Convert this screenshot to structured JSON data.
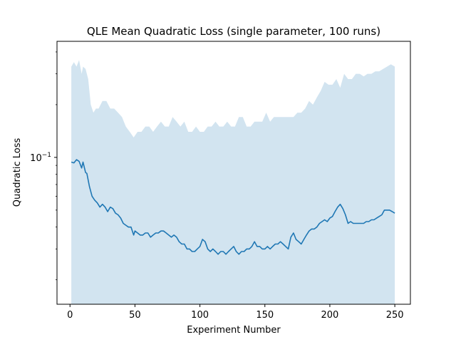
{
  "chart_data": {
    "type": "line",
    "title": "QLE Mean Quadratic Loss (single parameter, 100 runs)",
    "xlabel": "Experiment Number",
    "ylabel": "Quadratic Loss",
    "xlim": [
      -10,
      262
    ],
    "ylim": [
      0.0145,
      0.46
    ],
    "yscale": "log",
    "grid": false,
    "legend": "none",
    "x_ticks": [
      {
        "value": 0,
        "label": "0"
      },
      {
        "value": 50,
        "label": "50"
      },
      {
        "value": 100,
        "label": "100"
      },
      {
        "value": 150,
        "label": "150"
      },
      {
        "value": 200,
        "label": "200"
      },
      {
        "value": 250,
        "label": "250"
      }
    ],
    "y_ticks": [
      {
        "value": 0.1,
        "label": "10",
        "exponent": "−1"
      }
    ],
    "colors": {
      "line": "#1f77b4",
      "band": "#1f77b4"
    },
    "series": [
      {
        "role": "mean",
        "x": [
          1,
          3,
          5,
          7,
          9,
          10,
          12,
          13,
          15,
          17,
          19,
          21,
          23,
          25,
          27,
          29,
          31,
          33,
          35,
          37,
          39,
          41,
          43,
          45,
          47,
          49,
          50,
          52,
          54,
          56,
          58,
          60,
          62,
          64,
          66,
          68,
          70,
          72,
          74,
          76,
          78,
          80,
          82,
          84,
          86,
          88,
          90,
          92,
          94,
          96,
          98,
          100,
          102,
          104,
          106,
          108,
          110,
          112,
          114,
          116,
          118,
          120,
          122,
          124,
          126,
          128,
          130,
          132,
          134,
          136,
          138,
          140,
          142,
          144,
          146,
          148,
          150,
          152,
          154,
          156,
          158,
          160,
          162,
          164,
          166,
          168,
          170,
          172,
          174,
          176,
          178,
          180,
          182,
          184,
          186,
          188,
          190,
          192,
          194,
          196,
          198,
          200,
          202,
          204,
          206,
          208,
          210,
          212,
          214,
          216,
          218,
          220,
          222,
          224,
          226,
          228,
          230,
          232,
          234,
          236,
          238,
          240,
          242,
          244,
          246,
          248,
          250
        ],
        "y": [
          0.094,
          0.093,
          0.097,
          0.095,
          0.087,
          0.094,
          0.082,
          0.081,
          0.068,
          0.06,
          0.057,
          0.055,
          0.052,
          0.054,
          0.052,
          0.049,
          0.052,
          0.051,
          0.048,
          0.047,
          0.045,
          0.042,
          0.041,
          0.04,
          0.04,
          0.036,
          0.038,
          0.037,
          0.036,
          0.036,
          0.037,
          0.037,
          0.035,
          0.036,
          0.037,
          0.037,
          0.038,
          0.038,
          0.037,
          0.036,
          0.035,
          0.036,
          0.035,
          0.033,
          0.032,
          0.032,
          0.03,
          0.03,
          0.029,
          0.029,
          0.03,
          0.031,
          0.034,
          0.033,
          0.03,
          0.029,
          0.03,
          0.029,
          0.028,
          0.029,
          0.029,
          0.028,
          0.029,
          0.03,
          0.031,
          0.029,
          0.028,
          0.029,
          0.029,
          0.03,
          0.03,
          0.031,
          0.033,
          0.031,
          0.031,
          0.03,
          0.03,
          0.031,
          0.03,
          0.031,
          0.032,
          0.032,
          0.033,
          0.032,
          0.031,
          0.03,
          0.035,
          0.037,
          0.034,
          0.033,
          0.032,
          0.034,
          0.036,
          0.038,
          0.039,
          0.039,
          0.04,
          0.042,
          0.043,
          0.044,
          0.043,
          0.045,
          0.046,
          0.049,
          0.052,
          0.054,
          0.051,
          0.047,
          0.042,
          0.043,
          0.042,
          0.042,
          0.042,
          0.042,
          0.042,
          0.043,
          0.043,
          0.044,
          0.044,
          0.045,
          0.046,
          0.047,
          0.05,
          0.05,
          0.05,
          0.049,
          0.048
        ]
      },
      {
        "role": "band-upper",
        "x": [
          1,
          3,
          5,
          7,
          9,
          10,
          12,
          14,
          16,
          18,
          20,
          22,
          25,
          28,
          31,
          34,
          37,
          40,
          43,
          46,
          49,
          52,
          55,
          58,
          61,
          64,
          67,
          70,
          73,
          76,
          79,
          82,
          85,
          88,
          91,
          94,
          97,
          100,
          103,
          106,
          109,
          112,
          115,
          118,
          121,
          124,
          127,
          130,
          133,
          136,
          139,
          142,
          145,
          148,
          151,
          154,
          157,
          160,
          163,
          166,
          169,
          172,
          175,
          178,
          181,
          184,
          187,
          190,
          193,
          196,
          199,
          202,
          205,
          208,
          211,
          214,
          217,
          220,
          223,
          226,
          229,
          232,
          235,
          238,
          241,
          244,
          247,
          250
        ],
        "y": [
          0.33,
          0.35,
          0.33,
          0.36,
          0.3,
          0.33,
          0.32,
          0.28,
          0.2,
          0.18,
          0.19,
          0.19,
          0.21,
          0.21,
          0.19,
          0.19,
          0.18,
          0.17,
          0.15,
          0.14,
          0.13,
          0.14,
          0.14,
          0.15,
          0.15,
          0.14,
          0.15,
          0.16,
          0.15,
          0.15,
          0.17,
          0.16,
          0.15,
          0.16,
          0.14,
          0.14,
          0.15,
          0.14,
          0.14,
          0.15,
          0.15,
          0.16,
          0.15,
          0.15,
          0.16,
          0.15,
          0.15,
          0.17,
          0.17,
          0.15,
          0.15,
          0.16,
          0.16,
          0.16,
          0.18,
          0.16,
          0.17,
          0.17,
          0.17,
          0.17,
          0.17,
          0.17,
          0.18,
          0.18,
          0.19,
          0.21,
          0.2,
          0.22,
          0.24,
          0.27,
          0.26,
          0.26,
          0.28,
          0.25,
          0.3,
          0.28,
          0.28,
          0.3,
          0.3,
          0.29,
          0.3,
          0.3,
          0.31,
          0.31,
          0.32,
          0.33,
          0.34,
          0.33
        ]
      }
    ]
  }
}
